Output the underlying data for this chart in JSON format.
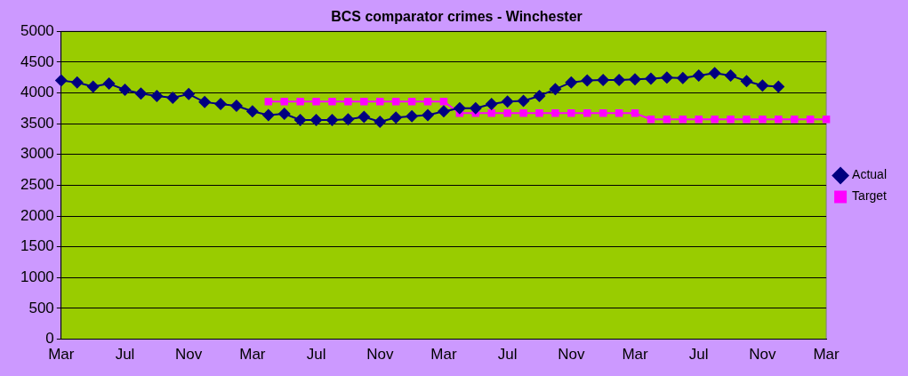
{
  "chart_data": {
    "type": "line",
    "title": "BCS comparator crimes - Winchester",
    "categories": [
      "Mar",
      null,
      null,
      null,
      "Jul",
      null,
      null,
      null,
      "Nov",
      null,
      null,
      null,
      "Mar",
      null,
      null,
      null,
      "Jul",
      null,
      null,
      null,
      "Nov",
      null,
      null,
      null,
      "Mar",
      null,
      null,
      null,
      "Jul",
      null,
      null,
      null,
      "Nov",
      null,
      null,
      null,
      "Mar",
      null,
      null,
      null,
      "Jul",
      null,
      null,
      null,
      "Nov",
      null,
      null,
      null,
      "Mar"
    ],
    "series": [
      {
        "name": "Actual",
        "color": "#000080",
        "marker": "diamond",
        "values": [
          4200,
          4170,
          4100,
          4150,
          4050,
          3990,
          3950,
          3920,
          3980,
          3850,
          3820,
          3790,
          3700,
          3640,
          3660,
          3560,
          3560,
          3560,
          3570,
          3610,
          3530,
          3600,
          3620,
          3640,
          3700,
          3750,
          3750,
          3820,
          3860,
          3870,
          3950,
          4060,
          4170,
          4200,
          4210,
          4210,
          4220,
          4230,
          4250,
          4240,
          4280,
          4320,
          4280,
          4190,
          4120,
          4100,
          null,
          null,
          null
        ]
      },
      {
        "name": "Target",
        "color": "#ff00ff",
        "marker": "square",
        "values": [
          null,
          null,
          null,
          null,
          null,
          null,
          null,
          null,
          null,
          null,
          null,
          null,
          null,
          3860,
          3860,
          3860,
          3860,
          3860,
          3860,
          3860,
          3860,
          3860,
          3860,
          3860,
          3860,
          3670,
          3670,
          3670,
          3670,
          3670,
          3670,
          3670,
          3670,
          3670,
          3670,
          3670,
          3670,
          3570,
          3570,
          3570,
          3570,
          3570,
          3570,
          3570,
          3570,
          3570,
          3570,
          3570,
          3570
        ]
      }
    ],
    "ylim": [
      0,
      5000
    ],
    "yticks": [
      0,
      500,
      1000,
      1500,
      2000,
      2500,
      3000,
      3500,
      4000,
      4500,
      5000
    ],
    "grid": "y",
    "legend": "right",
    "line_style": "solid"
  }
}
